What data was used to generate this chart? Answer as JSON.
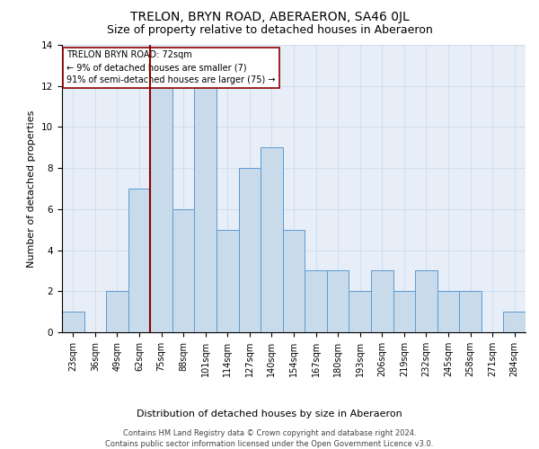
{
  "title": "TRELON, BRYN ROAD, ABERAERON, SA46 0JL",
  "subtitle": "Size of property relative to detached houses in Aberaeron",
  "xlabel_bottom": "Distribution of detached houses by size in Aberaeron",
  "ylabel": "Number of detached properties",
  "categories": [
    "23sqm",
    "36sqm",
    "49sqm",
    "62sqm",
    "75sqm",
    "88sqm",
    "101sqm",
    "114sqm",
    "127sqm",
    "140sqm",
    "154sqm",
    "167sqm",
    "180sqm",
    "193sqm",
    "206sqm",
    "219sqm",
    "232sqm",
    "245sqm",
    "258sqm",
    "271sqm",
    "284sqm"
  ],
  "values": [
    1,
    0,
    2,
    7,
    12,
    6,
    12,
    5,
    8,
    9,
    5,
    3,
    3,
    2,
    3,
    2,
    3,
    2,
    2,
    0,
    1
  ],
  "bar_color": "#c9daea",
  "bar_edge_color": "#5b9bd5",
  "red_line_index": 4,
  "red_line_color": "#8b0000",
  "ylim": [
    0,
    14
  ],
  "yticks": [
    0,
    2,
    4,
    6,
    8,
    10,
    12,
    14
  ],
  "grid_color": "#d0dff0",
  "background_color": "#e8eef8",
  "annotation_title": "TRELON BRYN ROAD: 72sqm",
  "annotation_line1": "← 9% of detached houses are smaller (7)",
  "annotation_line2": "91% of semi-detached houses are larger (75) →",
  "footer_line1": "Contains HM Land Registry data © Crown copyright and database right 2024.",
  "footer_line2": "Contains public sector information licensed under the Open Government Licence v3.0.",
  "title_fontsize": 10,
  "subtitle_fontsize": 9,
  "ylabel_fontsize": 8,
  "xlabel_fontsize": 8,
  "tick_fontsize": 7,
  "annotation_fontsize": 7,
  "footer_fontsize": 6
}
